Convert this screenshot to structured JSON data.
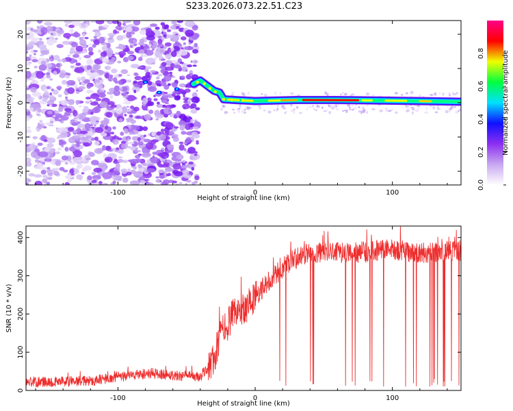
{
  "title": "S233.2026.073.22.51.C23",
  "chart_data": [
    {
      "type": "heatmap",
      "xlabel": "Height of straight line (km)",
      "ylabel": "Frequency (Hz)",
      "xlim": [
        -167,
        150
      ],
      "ylim": [
        -24,
        24
      ],
      "xticks": [
        -100,
        0,
        100
      ],
      "yticks": [
        -20,
        -10,
        0,
        10,
        20
      ],
      "ridge": [
        {
          "x": -45,
          "y": 5.5
        },
        {
          "x": -40,
          "y": 6.5
        },
        {
          "x": -35,
          "y": 5.0
        },
        {
          "x": -30,
          "y": 3.5
        },
        {
          "x": -26,
          "y": 3.0
        },
        {
          "x": -23,
          "y": 1.0
        },
        {
          "x": -15,
          "y": 0.8
        },
        {
          "x": 0,
          "y": 0.5
        },
        {
          "x": 30,
          "y": 0.8
        },
        {
          "x": 60,
          "y": 0.8
        },
        {
          "x": 100,
          "y": 0.6
        },
        {
          "x": 150,
          "y": 0.3
        }
      ],
      "colorbar": {
        "label": "Normalized spectral amplitude",
        "range": [
          0,
          1
        ],
        "ticks": [
          0.0,
          0.2,
          0.4,
          0.6,
          0.8
        ],
        "tick_labels": [
          "0.0",
          "0.2",
          "0.4",
          "0.6",
          "0.8"
        ],
        "stops": [
          "#ffffff",
          "#c8a8f0",
          "#8c2ff0",
          "#1010ff",
          "#00e0ff",
          "#00ff40",
          "#f0ff00",
          "#ff0000",
          "#ff0088"
        ]
      },
      "noise_region_x": [
        -167,
        -42
      ]
    },
    {
      "type": "line",
      "xlabel": "Height of straight line (km)",
      "ylabel": "SNR (10 * v/v)",
      "xlim": [
        -167,
        150
      ],
      "ylim": [
        0,
        430
      ],
      "xticks": [
        -100,
        0,
        100
      ],
      "yticks": [
        0,
        100,
        200,
        300,
        400
      ],
      "color": "#ee2d2d",
      "trend": [
        {
          "x": -167,
          "y": 22
        },
        {
          "x": -120,
          "y": 25
        },
        {
          "x": -90,
          "y": 40
        },
        {
          "x": -75,
          "y": 45
        },
        {
          "x": -60,
          "y": 40
        },
        {
          "x": -40,
          "y": 35
        },
        {
          "x": -30,
          "y": 80
        },
        {
          "x": -25,
          "y": 150
        },
        {
          "x": -15,
          "y": 200
        },
        {
          "x": -5,
          "y": 225
        },
        {
          "x": 5,
          "y": 265
        },
        {
          "x": 15,
          "y": 305
        },
        {
          "x": 25,
          "y": 335
        },
        {
          "x": 35,
          "y": 355
        },
        {
          "x": 50,
          "y": 360
        },
        {
          "x": 80,
          "y": 362
        },
        {
          "x": 100,
          "y": 370
        },
        {
          "x": 120,
          "y": 360
        },
        {
          "x": 150,
          "y": 365
        }
      ],
      "dropout_start_x": 8,
      "dropout_min_y": 10
    }
  ]
}
